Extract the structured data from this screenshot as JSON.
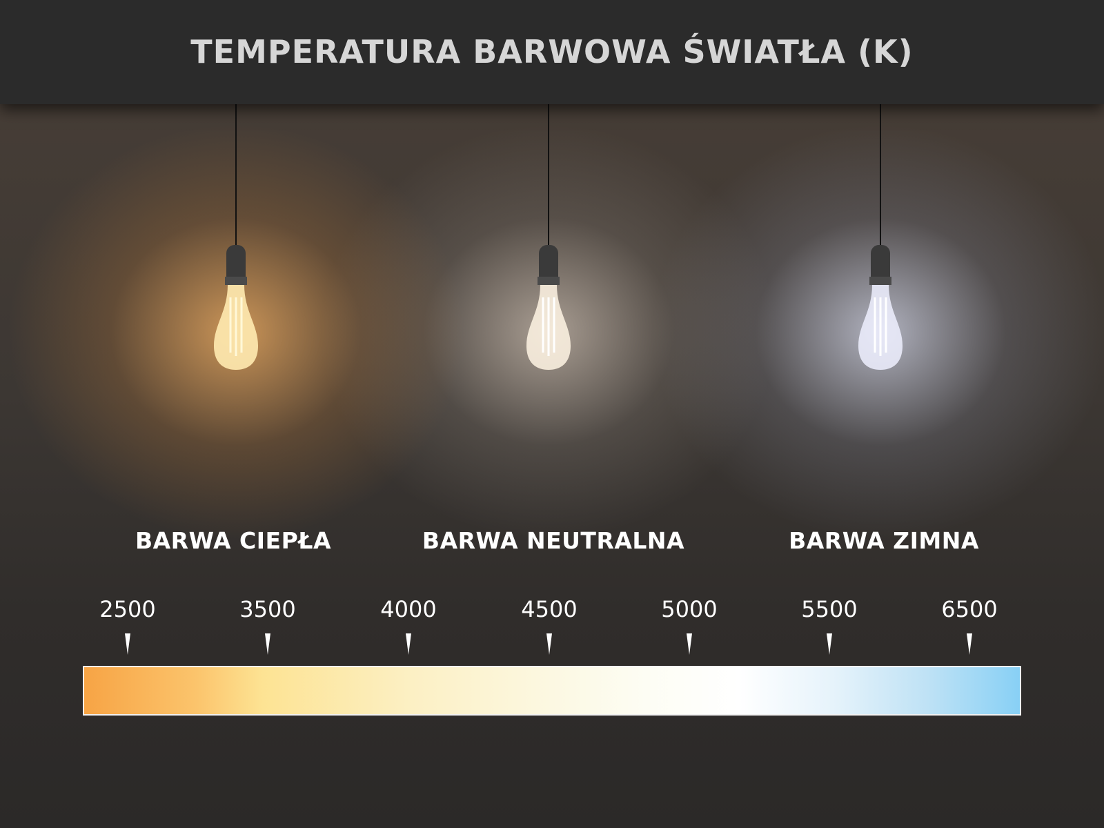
{
  "title": "TEMPERATURA BARWOWA ŚWIATŁA (K)",
  "categories": [
    {
      "label": "BARWA CIEPŁA",
      "glow_color": "#f8b870"
    },
    {
      "label": "BARWA NEUTRALNA",
      "glow_color": "#f0e6da"
    },
    {
      "label": "BARWA ZIMNA",
      "glow_color": "#e2e6fa"
    }
  ],
  "scale": {
    "ticks": [
      "2500",
      "3500",
      "4000",
      "4500",
      "5000",
      "5500",
      "6500"
    ],
    "gradient_colors": [
      "#f7a445",
      "#fde393",
      "#fdfdf4",
      "#ffffff",
      "#88d0f5"
    ]
  }
}
